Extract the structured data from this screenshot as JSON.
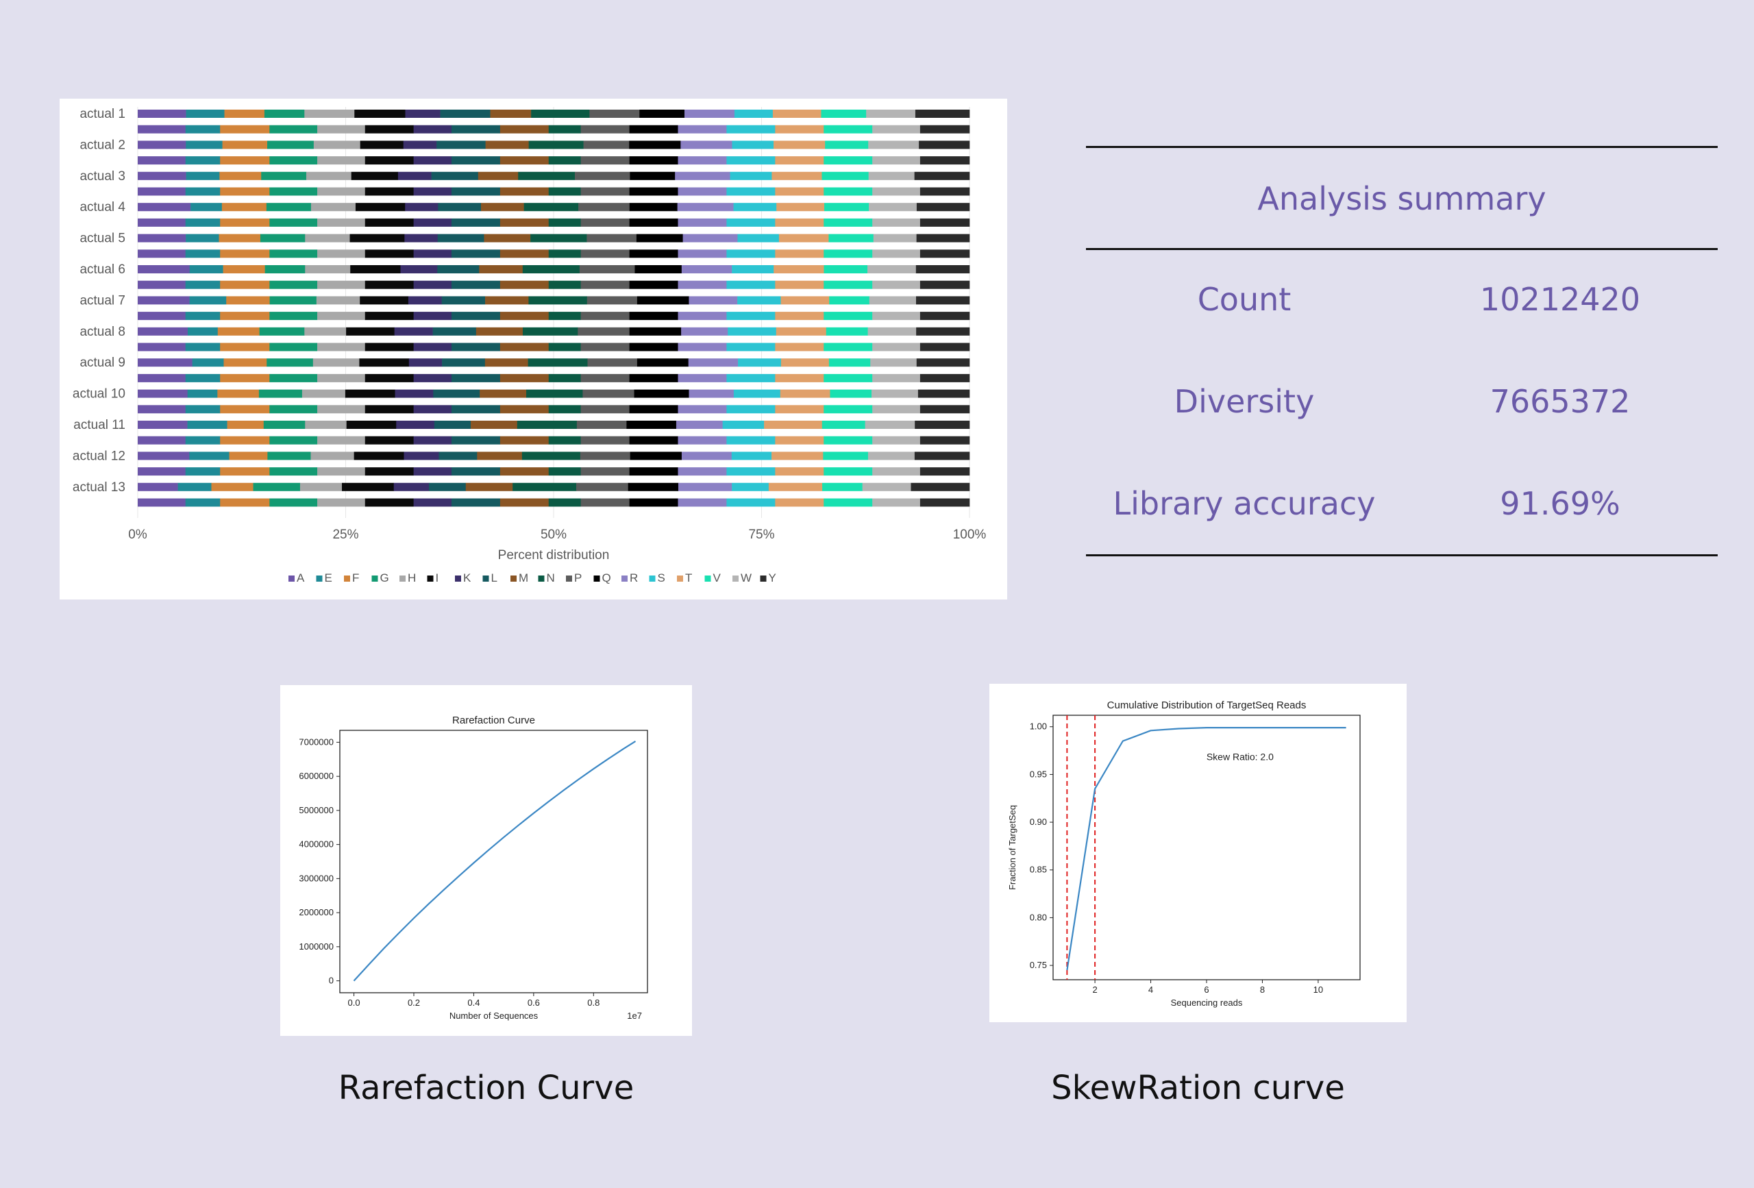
{
  "chart_data": [
    {
      "type": "bar",
      "orientation": "horizontal",
      "stacked": "percent",
      "xlabel": "Percent distribution",
      "x_ticks": [
        "0%",
        "25%",
        "50%",
        "75%",
        "100%"
      ],
      "xlim": [
        0,
        100
      ],
      "legend_position": "bottom",
      "categories": [
        "actual 1",
        "",
        "actual 2",
        "",
        "actual 3",
        "",
        "actual 4",
        "",
        "actual 5",
        "",
        "actual 6",
        "",
        "actual 7",
        "",
        "actual 8",
        "",
        "actual 9",
        "",
        "actual 10",
        "",
        "actual 11",
        "",
        "actual 12",
        "",
        "actual 13",
        ""
      ],
      "series": [
        {
          "name": "A",
          "color": "#6c55a8"
        },
        {
          "name": "E",
          "color": "#1f8a96"
        },
        {
          "name": "F",
          "color": "#d2843a"
        },
        {
          "name": "G",
          "color": "#139a72"
        },
        {
          "name": "H",
          "color": "#a8a8a8"
        },
        {
          "name": "I",
          "color": "#0a0a0a"
        },
        {
          "name": "K",
          "color": "#3b2f6b"
        },
        {
          "name": "L",
          "color": "#155a60"
        },
        {
          "name": "M",
          "color": "#8a5524"
        },
        {
          "name": "N",
          "color": "#0b5a44"
        },
        {
          "name": "P",
          "color": "#5c5c5c"
        },
        {
          "name": "Q",
          "color": "#000000"
        },
        {
          "name": "R",
          "color": "#8b80c4"
        },
        {
          "name": "S",
          "color": "#2cc4d2"
        },
        {
          "name": "T",
          "color": "#e0a06a"
        },
        {
          "name": "V",
          "color": "#18e0b0"
        },
        {
          "name": "W",
          "color": "#b4b4b4"
        },
        {
          "name": "Y",
          "color": "#2b2b2b"
        }
      ],
      "rows": [
        [
          5.8,
          4.6,
          4.8,
          4.8,
          6.0,
          6.1,
          4.2,
          6.0,
          4.9,
          7.0,
          6.0,
          5.4,
          6.0,
          4.6,
          5.8,
          5.4,
          5.9,
          6.5
        ],
        [
          5.8,
          4.2,
          6.0,
          5.8,
          5.8,
          5.9,
          4.6,
          5.9,
          5.9,
          3.9,
          5.9,
          5.9,
          5.9,
          5.9,
          5.9,
          5.9,
          5.8,
          6.0
        ],
        [
          5.8,
          4.4,
          5.4,
          5.6,
          5.6,
          5.2,
          4.0,
          5.9,
          5.2,
          6.6,
          5.5,
          6.2,
          6.2,
          5.0,
          6.2,
          5.2,
          6.1,
          6.1
        ],
        [
          5.8,
          4.2,
          6.0,
          5.8,
          5.8,
          5.9,
          4.6,
          5.9,
          5.9,
          3.9,
          5.9,
          5.9,
          5.9,
          5.9,
          5.9,
          5.9,
          5.8,
          6.0
        ],
        [
          5.8,
          4.0,
          5.0,
          5.4,
          5.4,
          5.6,
          4.0,
          5.6,
          4.8,
          6.8,
          6.6,
          5.4,
          6.6,
          5.0,
          6.0,
          5.6,
          5.5,
          6.6
        ],
        [
          5.8,
          4.2,
          6.0,
          5.8,
          5.8,
          5.9,
          4.6,
          5.9,
          5.9,
          3.9,
          5.9,
          5.9,
          5.9,
          5.9,
          5.9,
          5.9,
          5.8,
          6.0
        ],
        [
          6.4,
          3.8,
          5.4,
          5.4,
          5.4,
          6.0,
          4.0,
          5.2,
          5.2,
          6.6,
          6.2,
          5.8,
          6.8,
          5.2,
          5.8,
          5.4,
          5.8,
          6.4
        ],
        [
          5.8,
          4.2,
          6.0,
          5.8,
          5.8,
          5.9,
          4.6,
          5.9,
          5.9,
          3.9,
          5.9,
          5.9,
          5.9,
          5.9,
          5.9,
          5.9,
          5.8,
          6.0
        ],
        [
          5.8,
          4.0,
          5.0,
          5.4,
          5.4,
          6.6,
          4.0,
          5.6,
          5.6,
          6.8,
          6.0,
          5.6,
          6.6,
          5.0,
          6.0,
          5.4,
          5.2,
          6.4
        ],
        [
          5.8,
          4.2,
          6.0,
          5.8,
          5.8,
          5.9,
          4.6,
          5.9,
          5.9,
          3.9,
          5.9,
          5.9,
          5.9,
          5.9,
          5.9,
          5.9,
          5.8,
          6.0
        ],
        [
          6.2,
          4.0,
          5.0,
          4.8,
          5.4,
          6.0,
          4.4,
          5.0,
          5.2,
          6.8,
          6.6,
          5.6,
          6.0,
          5.0,
          6.0,
          5.2,
          5.8,
          6.4
        ],
        [
          5.8,
          4.2,
          6.0,
          5.8,
          5.8,
          5.9,
          4.6,
          5.9,
          5.9,
          3.9,
          5.9,
          5.9,
          5.9,
          5.9,
          5.9,
          5.9,
          5.8,
          6.0
        ],
        [
          6.2,
          4.4,
          5.2,
          5.6,
          5.2,
          5.8,
          4.0,
          5.2,
          5.2,
          7.0,
          6.0,
          6.2,
          5.8,
          5.2,
          5.8,
          4.8,
          5.6,
          6.4
        ],
        [
          5.8,
          4.2,
          6.0,
          5.8,
          5.8,
          5.9,
          4.6,
          5.9,
          5.9,
          3.9,
          5.9,
          5.9,
          5.9,
          5.9,
          5.9,
          5.9,
          5.8,
          6.0
        ],
        [
          6.0,
          3.6,
          5.0,
          5.4,
          5.0,
          5.8,
          4.6,
          5.2,
          5.6,
          6.6,
          6.2,
          6.2,
          5.6,
          5.8,
          6.0,
          5.0,
          5.8,
          6.4
        ],
        [
          5.8,
          4.2,
          6.0,
          5.8,
          5.8,
          5.9,
          4.6,
          5.9,
          5.9,
          3.9,
          5.9,
          5.9,
          5.9,
          5.9,
          5.9,
          5.9,
          5.8,
          6.0
        ],
        [
          6.6,
          3.8,
          5.2,
          5.6,
          5.6,
          6.0,
          4.0,
          5.2,
          5.2,
          7.2,
          6.0,
          6.2,
          6.0,
          5.2,
          5.8,
          5.0,
          5.6,
          6.4
        ],
        [
          5.8,
          4.2,
          6.0,
          5.8,
          5.8,
          5.9,
          4.6,
          5.9,
          5.9,
          3.9,
          5.9,
          5.9,
          5.9,
          5.9,
          5.9,
          5.9,
          5.8,
          6.0
        ],
        [
          6.0,
          3.6,
          5.0,
          5.2,
          5.2,
          6.0,
          4.6,
          5.6,
          5.6,
          6.8,
          6.2,
          6.6,
          5.4,
          5.6,
          6.0,
          5.0,
          5.6,
          6.2
        ],
        [
          5.8,
          4.2,
          6.0,
          5.8,
          5.8,
          5.9,
          4.6,
          5.9,
          5.9,
          3.9,
          5.9,
          5.9,
          5.9,
          5.9,
          5.9,
          5.9,
          5.8,
          6.0
        ],
        [
          6.0,
          4.8,
          4.4,
          5.0,
          5.0,
          6.0,
          4.6,
          4.4,
          5.6,
          7.2,
          6.0,
          6.0,
          5.6,
          5.0,
          7.0,
          5.2,
          6.0,
          6.6
        ],
        [
          5.8,
          4.2,
          6.0,
          5.8,
          5.8,
          5.9,
          4.6,
          5.9,
          5.9,
          3.9,
          5.9,
          5.9,
          5.9,
          5.9,
          5.9,
          5.9,
          5.8,
          6.0
        ],
        [
          6.2,
          4.8,
          4.6,
          5.2,
          5.2,
          6.0,
          4.2,
          4.6,
          5.4,
          7.0,
          6.0,
          6.2,
          6.0,
          4.8,
          6.2,
          5.4,
          5.6,
          6.6
        ],
        [
          5.8,
          4.2,
          6.0,
          5.8,
          5.8,
          5.9,
          4.6,
          5.9,
          5.9,
          3.9,
          5.9,
          5.9,
          5.9,
          5.9,
          5.9,
          5.9,
          5.8,
          6.0
        ],
        [
          4.8,
          4.0,
          5.0,
          5.6,
          5.0,
          6.2,
          4.2,
          4.4,
          5.6,
          7.6,
          6.2,
          6.0,
          6.4,
          4.4,
          6.4,
          4.8,
          5.8,
          7.0
        ],
        [
          5.8,
          4.2,
          6.0,
          5.8,
          5.8,
          5.9,
          4.6,
          5.9,
          5.9,
          3.9,
          5.9,
          5.9,
          5.9,
          5.9,
          5.9,
          5.9,
          5.8,
          6.0
        ]
      ]
    },
    {
      "type": "line",
      "title": "Rarefaction Curve",
      "xlabel": "Number of Sequences",
      "ylabel": "",
      "x_offset_text": "1e7",
      "x_ticks": [
        "0.0",
        "0.2",
        "0.4",
        "0.6",
        "0.8"
      ],
      "y_ticks": [
        "0",
        "1000000",
        "2000000",
        "3000000",
        "4000000",
        "5000000",
        "6000000",
        "7000000"
      ],
      "xlim": [
        -0.047,
        0.98
      ],
      "ylim": [
        -350000,
        7350000
      ],
      "series": [
        {
          "color": "#3b87c4",
          "x": [
            0,
            0.05,
            0.1,
            0.15,
            0.2,
            0.25,
            0.3,
            0.35,
            0.4,
            0.45,
            0.5,
            0.55,
            0.6,
            0.65,
            0.7,
            0.75,
            0.8,
            0.85,
            0.9,
            0.94
          ],
          "y": [
            0,
            480000,
            950000,
            1400000,
            1840000,
            2260000,
            2670000,
            3070000,
            3460000,
            3840000,
            4210000,
            4570000,
            4920000,
            5260000,
            5590000,
            5910000,
            6220000,
            6520000,
            6810000,
            7030000
          ]
        }
      ]
    },
    {
      "type": "line",
      "title": "Cumulative Distribution of TargetSeq Reads",
      "xlabel": "Sequencing reads",
      "ylabel": "Fraction of TargetSeq",
      "x_ticks": [
        "2",
        "4",
        "6",
        "8",
        "10"
      ],
      "y_ticks": [
        "0.75",
        "0.80",
        "0.85",
        "0.90",
        "0.95",
        "1.00"
      ],
      "xlim": [
        0.5,
        11.5
      ],
      "ylim": [
        0.735,
        1.012
      ],
      "annotation": "Skew Ratio:  2.0",
      "vlines": [
        1,
        2
      ],
      "vline_color": "#e02020",
      "series": [
        {
          "color": "#3b87c4",
          "x": [
            1,
            2,
            3,
            4,
            5,
            6,
            7,
            8,
            9,
            10,
            11
          ],
          "y": [
            0.745,
            0.935,
            0.985,
            0.996,
            0.998,
            0.999,
            0.999,
            0.999,
            0.999,
            0.999,
            0.999
          ]
        }
      ]
    }
  ],
  "summary": {
    "title": "Analysis summary",
    "rows": [
      {
        "label": "Count",
        "value": "10212420"
      },
      {
        "label": "Diversity",
        "value": "7665372"
      },
      {
        "label": "Library accuracy",
        "value": "91.69%"
      }
    ]
  },
  "captions": {
    "rarefaction": "Rarefaction Curve",
    "skew": "SkewRation curve"
  }
}
